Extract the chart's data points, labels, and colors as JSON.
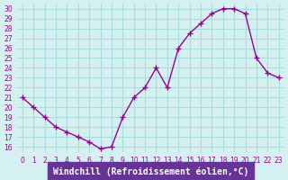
{
  "x": [
    0,
    1,
    2,
    3,
    4,
    5,
    6,
    7,
    8,
    9,
    10,
    11,
    12,
    13,
    14,
    15,
    16,
    17,
    18,
    19,
    20,
    21,
    22,
    23
  ],
  "y": [
    21,
    20,
    19,
    18,
    17.5,
    17,
    16.5,
    15.8,
    16,
    19,
    21,
    22,
    24,
    22,
    26,
    27.5,
    28.5,
    29.5,
    30,
    30,
    29.5,
    25,
    23.5,
    23
  ],
  "xlabel": "Windchill (Refroidissement éolien,°C)",
  "xlim": [
    -0.5,
    23.5
  ],
  "ylim": [
    15.5,
    30.5
  ],
  "yticks": [
    16,
    17,
    18,
    19,
    20,
    21,
    22,
    23,
    24,
    25,
    26,
    27,
    28,
    29,
    30
  ],
  "xticks": [
    0,
    1,
    2,
    3,
    4,
    5,
    6,
    7,
    8,
    9,
    10,
    11,
    12,
    13,
    14,
    15,
    16,
    17,
    18,
    19,
    20,
    21,
    22,
    23
  ],
  "line_color": "#990099",
  "marker": "+",
  "bg_color": "#d4f0f0",
  "grid_color": "#aadddd",
  "label_bg": "#663399",
  "label_fg": "#ffffff",
  "tick_fontsize": 5.5,
  "xlabel_fontsize": 7
}
